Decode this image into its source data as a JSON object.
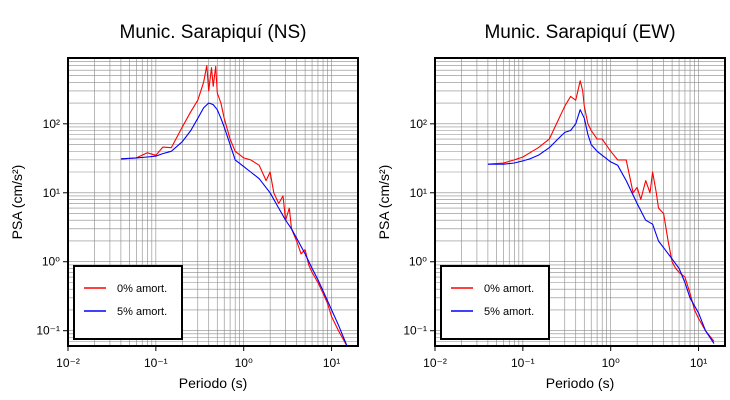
{
  "chart_data": [
    {
      "type": "line",
      "title": "Munic. Sarapiquí (NS)",
      "xlabel": "Periodo (s)",
      "ylabel": "PSA (cm/s²)",
      "xscale": "log",
      "yscale": "log",
      "xlim": [
        0.01,
        20
      ],
      "ylim": [
        0.06,
        900
      ],
      "grid": true,
      "legend_position": "bottom-left",
      "xtick_labels": [
        "10⁻²",
        "10⁻¹",
        "10⁰",
        "10¹"
      ],
      "ytick_labels": [
        "10⁻¹",
        "10⁰",
        "10¹",
        "10²"
      ],
      "series": [
        {
          "name": "0% amort.",
          "color": "#ff0000",
          "points": [
            [
              0.04,
              31
            ],
            [
              0.06,
              32
            ],
            [
              0.08,
              38
            ],
            [
              0.1,
              35
            ],
            [
              0.12,
              46
            ],
            [
              0.15,
              45
            ],
            [
              0.2,
              90
            ],
            [
              0.25,
              150
            ],
            [
              0.3,
              220
            ],
            [
              0.35,
              400
            ],
            [
              0.38,
              700
            ],
            [
              0.4,
              300
            ],
            [
              0.43,
              650
            ],
            [
              0.45,
              350
            ],
            [
              0.48,
              680
            ],
            [
              0.5,
              280
            ],
            [
              0.55,
              200
            ],
            [
              0.6,
              120
            ],
            [
              0.7,
              60
            ],
            [
              0.8,
              40
            ],
            [
              1.0,
              32
            ],
            [
              1.2,
              30
            ],
            [
              1.5,
              25
            ],
            [
              1.8,
              15
            ],
            [
              2.0,
              20
            ],
            [
              2.2,
              10
            ],
            [
              2.5,
              7
            ],
            [
              2.8,
              9
            ],
            [
              3.0,
              4
            ],
            [
              3.3,
              6
            ],
            [
              3.5,
              3
            ],
            [
              4.0,
              2
            ],
            [
              4.5,
              1.3
            ],
            [
              5.0,
              1.5
            ],
            [
              5.5,
              0.9
            ],
            [
              6.0,
              0.7
            ],
            [
              7.0,
              0.5
            ],
            [
              8.0,
              0.35
            ],
            [
              9.0,
              0.25
            ],
            [
              10.0,
              0.16
            ],
            [
              12.0,
              0.1
            ],
            [
              15.0,
              0.06
            ]
          ]
        },
        {
          "name": "5% amort.",
          "color": "#0000ff",
          "points": [
            [
              0.04,
              31
            ],
            [
              0.06,
              32
            ],
            [
              0.08,
              33
            ],
            [
              0.1,
              34
            ],
            [
              0.12,
              37
            ],
            [
              0.15,
              40
            ],
            [
              0.2,
              55
            ],
            [
              0.25,
              80
            ],
            [
              0.3,
              120
            ],
            [
              0.35,
              170
            ],
            [
              0.4,
              200
            ],
            [
              0.45,
              190
            ],
            [
              0.5,
              160
            ],
            [
              0.55,
              120
            ],
            [
              0.6,
              90
            ],
            [
              0.7,
              50
            ],
            [
              0.8,
              30
            ],
            [
              1.0,
              24
            ],
            [
              1.2,
              20
            ],
            [
              1.5,
              16
            ],
            [
              2.0,
              10
            ],
            [
              2.5,
              6
            ],
            [
              3.0,
              4
            ],
            [
              3.5,
              3
            ],
            [
              4.0,
              2.2
            ],
            [
              5.0,
              1.3
            ],
            [
              6.0,
              0.8
            ],
            [
              7.0,
              0.55
            ],
            [
              8.0,
              0.38
            ],
            [
              10.0,
              0.2
            ],
            [
              12.0,
              0.12
            ],
            [
              15.0,
              0.06
            ]
          ]
        }
      ]
    },
    {
      "type": "line",
      "title": "Munic. Sarapiquí (EW)",
      "xlabel": "Periodo (s)",
      "ylabel": "PSA (cm/s²)",
      "xscale": "log",
      "yscale": "log",
      "xlim": [
        0.01,
        20
      ],
      "ylim": [
        0.06,
        900
      ],
      "grid": true,
      "legend_position": "bottom-left",
      "xtick_labels": [
        "10⁻²",
        "10⁻¹",
        "10⁰",
        "10¹"
      ],
      "ytick_labels": [
        "10⁻¹",
        "10⁰",
        "10¹",
        "10²"
      ],
      "series": [
        {
          "name": "0% amort.",
          "color": "#ff0000",
          "points": [
            [
              0.04,
              26
            ],
            [
              0.06,
              27
            ],
            [
              0.08,
              30
            ],
            [
              0.1,
              33
            ],
            [
              0.12,
              38
            ],
            [
              0.15,
              45
            ],
            [
              0.2,
              60
            ],
            [
              0.25,
              110
            ],
            [
              0.3,
              180
            ],
            [
              0.35,
              250
            ],
            [
              0.4,
              220
            ],
            [
              0.45,
              420
            ],
            [
              0.48,
              300
            ],
            [
              0.5,
              180
            ],
            [
              0.55,
              100
            ],
            [
              0.6,
              80
            ],
            [
              0.7,
              60
            ],
            [
              0.8,
              60
            ],
            [
              1.0,
              40
            ],
            [
              1.2,
              30
            ],
            [
              1.5,
              30
            ],
            [
              1.8,
              10
            ],
            [
              2.0,
              12
            ],
            [
              2.2,
              8
            ],
            [
              2.5,
              15
            ],
            [
              2.8,
              10
            ],
            [
              3.0,
              20
            ],
            [
              3.3,
              10
            ],
            [
              3.5,
              6
            ],
            [
              4.0,
              5
            ],
            [
              4.5,
              2
            ],
            [
              5.0,
              1
            ],
            [
              5.5,
              0.8
            ],
            [
              6.0,
              0.7
            ],
            [
              7.0,
              0.6
            ],
            [
              8.0,
              0.35
            ],
            [
              9.0,
              0.2
            ],
            [
              10.0,
              0.15
            ],
            [
              12.0,
              0.1
            ],
            [
              15.0,
              0.07
            ]
          ]
        },
        {
          "name": "5% amort.",
          "color": "#0000ff",
          "points": [
            [
              0.04,
              26
            ],
            [
              0.06,
              26
            ],
            [
              0.08,
              27
            ],
            [
              0.1,
              29
            ],
            [
              0.12,
              31
            ],
            [
              0.15,
              35
            ],
            [
              0.2,
              45
            ],
            [
              0.25,
              60
            ],
            [
              0.3,
              75
            ],
            [
              0.35,
              80
            ],
            [
              0.4,
              100
            ],
            [
              0.45,
              160
            ],
            [
              0.5,
              120
            ],
            [
              0.55,
              70
            ],
            [
              0.6,
              50
            ],
            [
              0.7,
              40
            ],
            [
              0.8,
              35
            ],
            [
              1.0,
              28
            ],
            [
              1.2,
              25
            ],
            [
              1.5,
              15
            ],
            [
              2.0,
              7
            ],
            [
              2.5,
              4
            ],
            [
              3.0,
              3.5
            ],
            [
              3.5,
              2
            ],
            [
              4.0,
              1.6
            ],
            [
              5.0,
              1.1
            ],
            [
              6.0,
              0.8
            ],
            [
              7.0,
              0.5
            ],
            [
              8.0,
              0.3
            ],
            [
              10.0,
              0.18
            ],
            [
              12.0,
              0.1
            ],
            [
              15.0,
              0.065
            ]
          ]
        }
      ]
    }
  ]
}
